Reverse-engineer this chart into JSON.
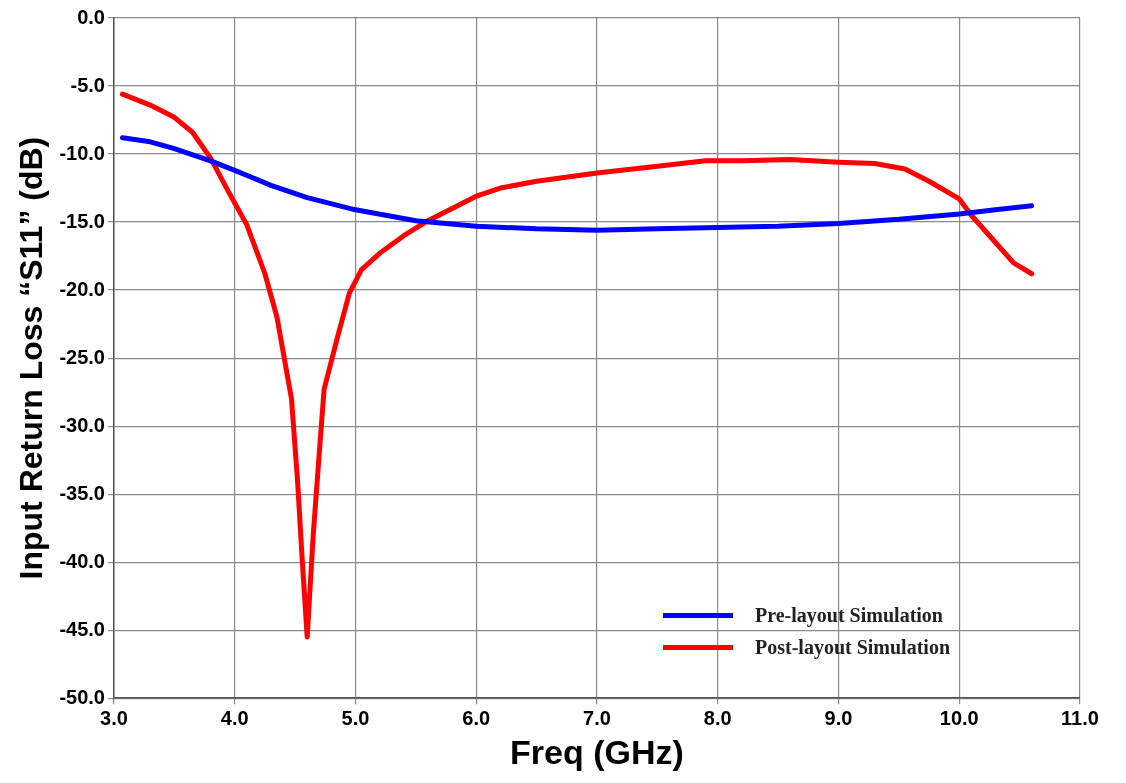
{
  "chart_data": {
    "type": "line",
    "xlabel": "Freq (GHz)",
    "ylabel": "Input Return Loss “S11” (dB)",
    "xlim": [
      3,
      11
    ],
    "xticks": [
      {
        "value": 3,
        "label": "3.0"
      },
      {
        "value": 4,
        "label": "4.0"
      },
      {
        "value": 5,
        "label": "5.0"
      },
      {
        "value": 6,
        "label": "6.0"
      },
      {
        "value": 7,
        "label": "7.0"
      },
      {
        "value": 8,
        "label": "8.0"
      },
      {
        "value": 9,
        "label": "9.0"
      },
      {
        "value": 10,
        "label": "10.0"
      },
      {
        "value": 11,
        "label": "11.0"
      }
    ],
    "ylim": [
      -50,
      0
    ],
    "yticks": [
      {
        "value": -50,
        "label": "-50.0"
      },
      {
        "value": -45,
        "label": "-45.0"
      },
      {
        "value": -40,
        "label": "-40.0"
      },
      {
        "value": -35,
        "label": "-35.0"
      },
      {
        "value": -30,
        "label": "-30.0"
      },
      {
        "value": -25,
        "label": "-25.0"
      },
      {
        "value": -20,
        "label": "-20.0"
      },
      {
        "value": -15,
        "label": "-15.0"
      },
      {
        "value": -10,
        "label": "-10.0"
      },
      {
        "value": -5,
        "label": "-5.0"
      },
      {
        "value": 0,
        "label": "0.0"
      }
    ],
    "grid": true,
    "legend": "bottom right",
    "marker": "none",
    "line_style": "solid",
    "series": [
      {
        "name": "Pre-layout Simulation",
        "color": "#0000ff",
        "x": [
          3.07,
          3.3,
          3.5,
          3.8,
          4.0,
          4.3,
          4.6,
          5.0,
          5.5,
          6.0,
          6.5,
          7.0,
          7.5,
          8.0,
          8.5,
          9.0,
          9.5,
          10.0,
          10.3,
          10.6
        ],
        "values": [
          -8.8,
          -9.1,
          -9.6,
          -10.5,
          -11.2,
          -12.3,
          -13.2,
          -14.1,
          -14.9,
          -15.3,
          -15.5,
          -15.6,
          -15.5,
          -15.4,
          -15.3,
          -15.1,
          -14.8,
          -14.4,
          -14.1,
          -13.8
        ]
      },
      {
        "name": "Post-layout Simulation",
        "color": "#ff0000",
        "x": [
          3.07,
          3.3,
          3.5,
          3.65,
          3.8,
          3.95,
          4.1,
          4.25,
          4.35,
          4.47,
          4.52,
          4.56,
          4.6,
          4.65,
          4.7,
          4.74,
          4.85,
          4.95,
          5.05,
          5.2,
          5.4,
          5.6,
          5.8,
          6.0,
          6.2,
          6.5,
          7.0,
          7.5,
          7.9,
          8.2,
          8.6,
          9.0,
          9.3,
          9.55,
          9.75,
          10.0,
          10.1,
          10.3,
          10.45,
          10.6
        ],
        "values": [
          -5.6,
          -6.4,
          -7.3,
          -8.4,
          -10.3,
          -12.8,
          -15.2,
          -18.8,
          -22,
          -28,
          -34,
          -40,
          -45.5,
          -38,
          -32,
          -27.3,
          -23.5,
          -20.2,
          -18.5,
          -17.3,
          -16,
          -14.9,
          -14,
          -13.1,
          -12.5,
          -12,
          -11.4,
          -10.9,
          -10.5,
          -10.5,
          -10.4,
          -10.6,
          -10.7,
          -11.1,
          -12,
          -13.3,
          -14.5,
          -16.5,
          -18,
          -18.8
        ]
      }
    ]
  }
}
